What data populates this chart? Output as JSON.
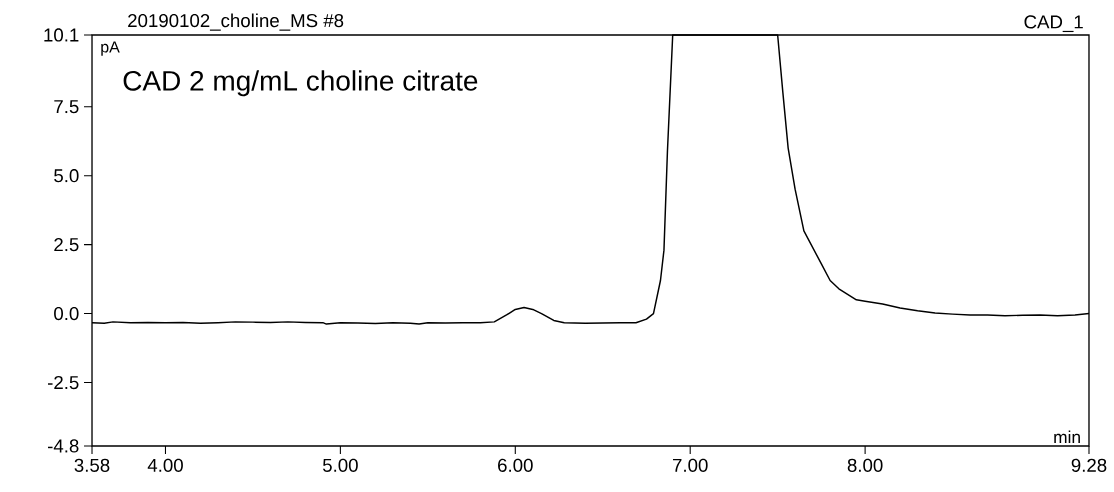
{
  "chart_data": {
    "type": "line",
    "title": "20190102_choline_MS #8",
    "xlabel": "min",
    "ylabel": "pA",
    "annotations": [
      "CAD_1",
      "CAD 2 mg/mL choline citrate"
    ],
    "xlim": [
      3.58,
      9.28
    ],
    "ylim": [
      -4.8,
      10.1
    ],
    "xticks": [
      3.58,
      {
        "value": 4,
        "label": "4.00"
      },
      {
        "value": 5,
        "label": "5.00"
      },
      {
        "value": 6,
        "label": "6.00"
      },
      {
        "value": 7,
        "label": "7.00"
      },
      {
        "value": 8,
        "label": "8.00"
      },
      9.28
    ],
    "yticks": [
      -4.8,
      -2.5,
      {
        "value": 0,
        "label": "0.0"
      },
      2.5,
      {
        "value": 5,
        "label": "5.0"
      },
      7.5,
      10.1
    ],
    "grid": false,
    "series": [
      {
        "color": "#000000",
        "x": [
          3.58,
          3.65,
          3.7,
          3.8,
          3.9,
          4.0,
          4.1,
          4.2,
          4.3,
          4.4,
          4.5,
          4.6,
          4.7,
          4.8,
          4.9,
          4.92,
          5.0,
          5.1,
          5.2,
          5.3,
          5.4,
          5.45,
          5.5,
          5.6,
          5.7,
          5.8,
          5.88,
          5.95,
          6.0,
          6.05,
          6.1,
          6.15,
          6.22,
          6.28,
          6.4,
          6.5,
          6.6,
          6.69,
          6.75,
          6.79,
          6.83,
          6.85,
          6.87,
          6.9,
          7.5,
          7.53,
          7.56,
          7.6,
          7.65,
          7.7,
          7.75,
          7.8,
          7.85,
          7.9,
          7.95,
          8.0,
          8.1,
          8.2,
          8.3,
          8.4,
          8.5,
          8.6,
          8.7,
          8.8,
          8.9,
          9.0,
          9.1,
          9.2,
          9.28
        ],
        "values": [
          -0.33,
          -0.35,
          -0.3,
          -0.33,
          -0.32,
          -0.33,
          -0.32,
          -0.35,
          -0.33,
          -0.3,
          -0.31,
          -0.32,
          -0.3,
          -0.32,
          -0.33,
          -0.38,
          -0.33,
          -0.34,
          -0.36,
          -0.33,
          -0.35,
          -0.38,
          -0.33,
          -0.34,
          -0.33,
          -0.33,
          -0.3,
          -0.05,
          0.15,
          0.22,
          0.15,
          0.0,
          -0.25,
          -0.33,
          -0.35,
          -0.34,
          -0.33,
          -0.33,
          -0.2,
          0.0,
          1.2,
          2.3,
          5.9,
          10.1,
          10.1,
          8.0,
          6.0,
          4.5,
          3.0,
          2.4,
          1.8,
          1.2,
          0.9,
          0.7,
          0.5,
          0.45,
          0.35,
          0.2,
          0.1,
          0.02,
          -0.02,
          -0.05,
          -0.05,
          -0.08,
          -0.06,
          -0.05,
          -0.08,
          -0.05,
          0.0
        ]
      }
    ]
  }
}
